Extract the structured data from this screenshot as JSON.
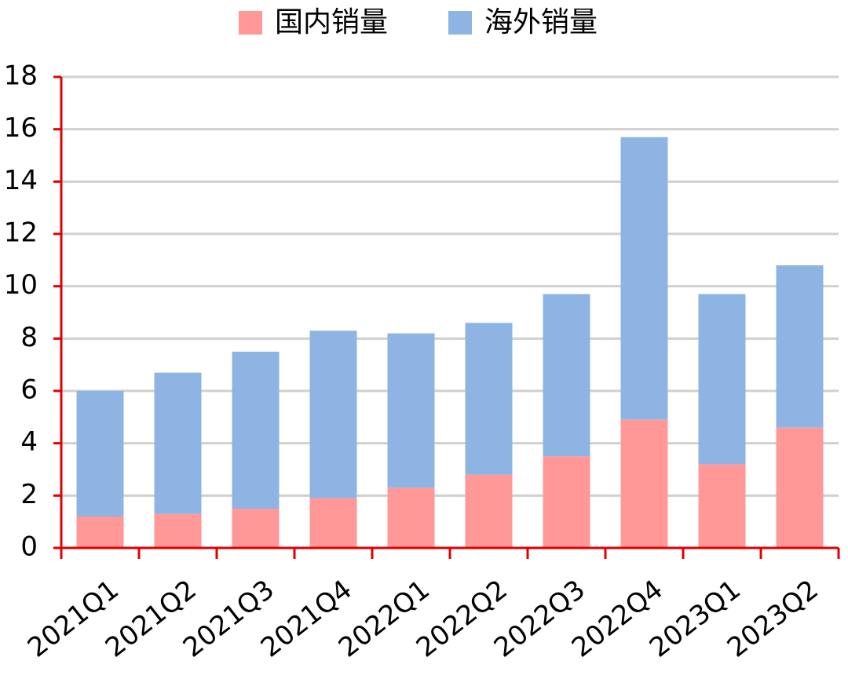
{
  "chart_data": {
    "type": "stacked-bar",
    "categories": [
      "2021Q1",
      "2021Q2",
      "2021Q3",
      "2021Q4",
      "2022Q1",
      "2022Q2",
      "2022Q3",
      "2022Q4",
      "2023Q1",
      "2023Q2"
    ],
    "series": [
      {
        "name": "国内销量",
        "color": "#ff9896",
        "values": [
          1.2,
          1.3,
          1.5,
          1.9,
          2.3,
          2.8,
          3.5,
          4.9,
          3.2,
          4.6
        ]
      },
      {
        "name": "海外销量",
        "color": "#8eb4e3",
        "values": [
          4.8,
          5.4,
          6.0,
          6.4,
          5.9,
          5.8,
          6.2,
          10.8,
          6.5,
          6.2
        ]
      }
    ],
    "ylim": [
      0,
      18
    ],
    "yticks": [
      0,
      2,
      4,
      6,
      8,
      10,
      12,
      14,
      16,
      18
    ],
    "grid": true
  }
}
